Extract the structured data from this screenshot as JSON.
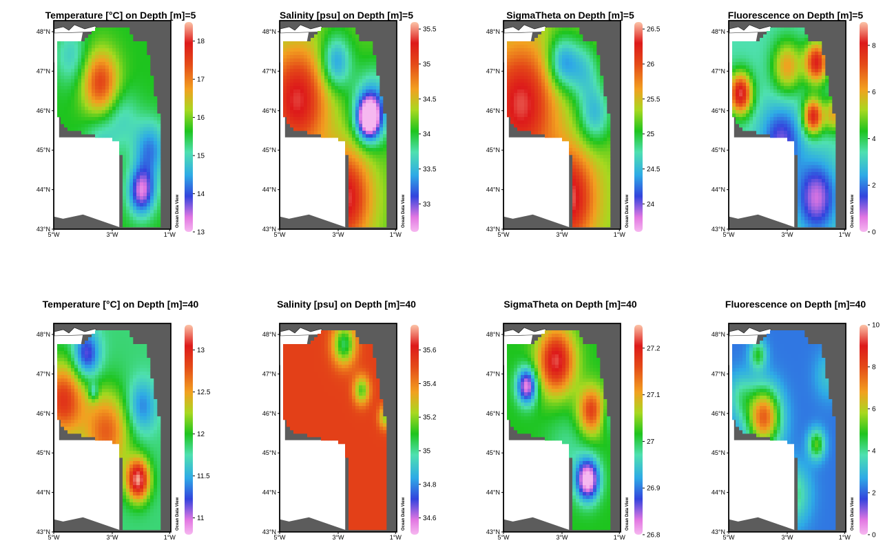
{
  "chart_data": [
    {
      "type": "heatmap",
      "title": "Temperature [°C] on Depth [m]=5",
      "x_ticks": [
        "5°W",
        "3°W",
        "1°W"
      ],
      "y_ticks": [
        "48°N",
        "47°N",
        "46°N",
        "45°N",
        "44°N",
        "43°N"
      ],
      "colorbar": {
        "ticks": [
          "18",
          "17",
          "16",
          "15",
          "14",
          "13"
        ],
        "range": [
          13,
          18.5
        ]
      },
      "watermark": "Ocean Data View",
      "field": "temp5"
    },
    {
      "type": "heatmap",
      "title": "Salinity [psu] on Depth [m]=5",
      "x_ticks": [
        "5°W",
        "3°W",
        "1°W"
      ],
      "y_ticks": [
        "48°N",
        "47°N",
        "46°N",
        "45°N",
        "44°N",
        "43°N"
      ],
      "colorbar": {
        "ticks": [
          "35.5",
          "35",
          "34.5",
          "34",
          "33.5",
          "33"
        ],
        "range": [
          32.6,
          35.6
        ]
      },
      "watermark": "Ocean Data View",
      "field": "sal5"
    },
    {
      "type": "heatmap",
      "title": "SigmaTheta on Depth [m]=5",
      "x_ticks": [
        "5°W",
        "3°W",
        "1°W"
      ],
      "y_ticks": [
        "48°N",
        "47°N",
        "46°N",
        "45°N",
        "44°N",
        "43°N"
      ],
      "colorbar": {
        "ticks": [
          "26.5",
          "26",
          "25.5",
          "25",
          "24.5",
          "24"
        ],
        "range": [
          23.6,
          26.6
        ]
      },
      "watermark": "Ocean Data View",
      "field": "sig5"
    },
    {
      "type": "heatmap",
      "title": "Fluorescence on Depth [m]=5",
      "x_ticks": [
        "5°W",
        "3°W",
        "1°W"
      ],
      "y_ticks": [
        "48°N",
        "47°N",
        "46°N",
        "45°N",
        "44°N",
        "43°N"
      ],
      "colorbar": {
        "ticks": [
          "8",
          "6",
          "4",
          "2",
          "0"
        ],
        "range": [
          0,
          9
        ]
      },
      "watermark": "Ocean Data View",
      "field": "flu5"
    },
    {
      "type": "heatmap",
      "title": "Temperature [°C] on Depth [m]=40",
      "x_ticks": [
        "5°W",
        "3°W",
        "1°W"
      ],
      "y_ticks": [
        "48°N",
        "47°N",
        "46°N",
        "45°N",
        "44°N",
        "43°N"
      ],
      "colorbar": {
        "ticks": [
          "13",
          "12.5",
          "12",
          "11.5",
          "11"
        ],
        "range": [
          10.8,
          13.3
        ]
      },
      "watermark": "Ocean Data View",
      "field": "temp40"
    },
    {
      "type": "heatmap",
      "title": "Salinity [psu] on Depth [m]=40",
      "x_ticks": [
        "5°W",
        "3°W",
        "1°W"
      ],
      "y_ticks": [
        "48°N",
        "47°N",
        "46°N",
        "45°N",
        "44°N",
        "43°N"
      ],
      "colorbar": {
        "ticks": [
          "35.6",
          "35.4",
          "35.2",
          "35",
          "34.8",
          "34.6"
        ],
        "range": [
          34.5,
          35.75
        ]
      },
      "watermark": "Ocean Data View",
      "field": "sal40"
    },
    {
      "type": "heatmap",
      "title": "SigmaTheta on Depth [m]=40",
      "x_ticks": [
        "5°W",
        "3°W",
        "1°W"
      ],
      "y_ticks": [
        "48°N",
        "47°N",
        "46°N",
        "45°N",
        "44°N",
        "43°N"
      ],
      "colorbar": {
        "ticks": [
          "27.2",
          "27.1",
          "27",
          "26.9",
          "26.8"
        ],
        "range": [
          26.8,
          27.25
        ]
      },
      "watermark": "Ocean Data View",
      "field": "sig40"
    },
    {
      "type": "heatmap",
      "title": "Fluorescence on Depth [m]=40",
      "x_ticks": [
        "5°W",
        "3°W",
        "1°W"
      ],
      "y_ticks": [
        "48°N",
        "47°N",
        "46°N",
        "45°N",
        "44°N",
        "43°N"
      ],
      "colorbar": {
        "ticks": [
          "10",
          "8",
          "6",
          "4",
          "2",
          "0"
        ],
        "range": [
          0,
          10
        ]
      },
      "watermark": "Ocean Data View",
      "field": "flu40"
    }
  ]
}
